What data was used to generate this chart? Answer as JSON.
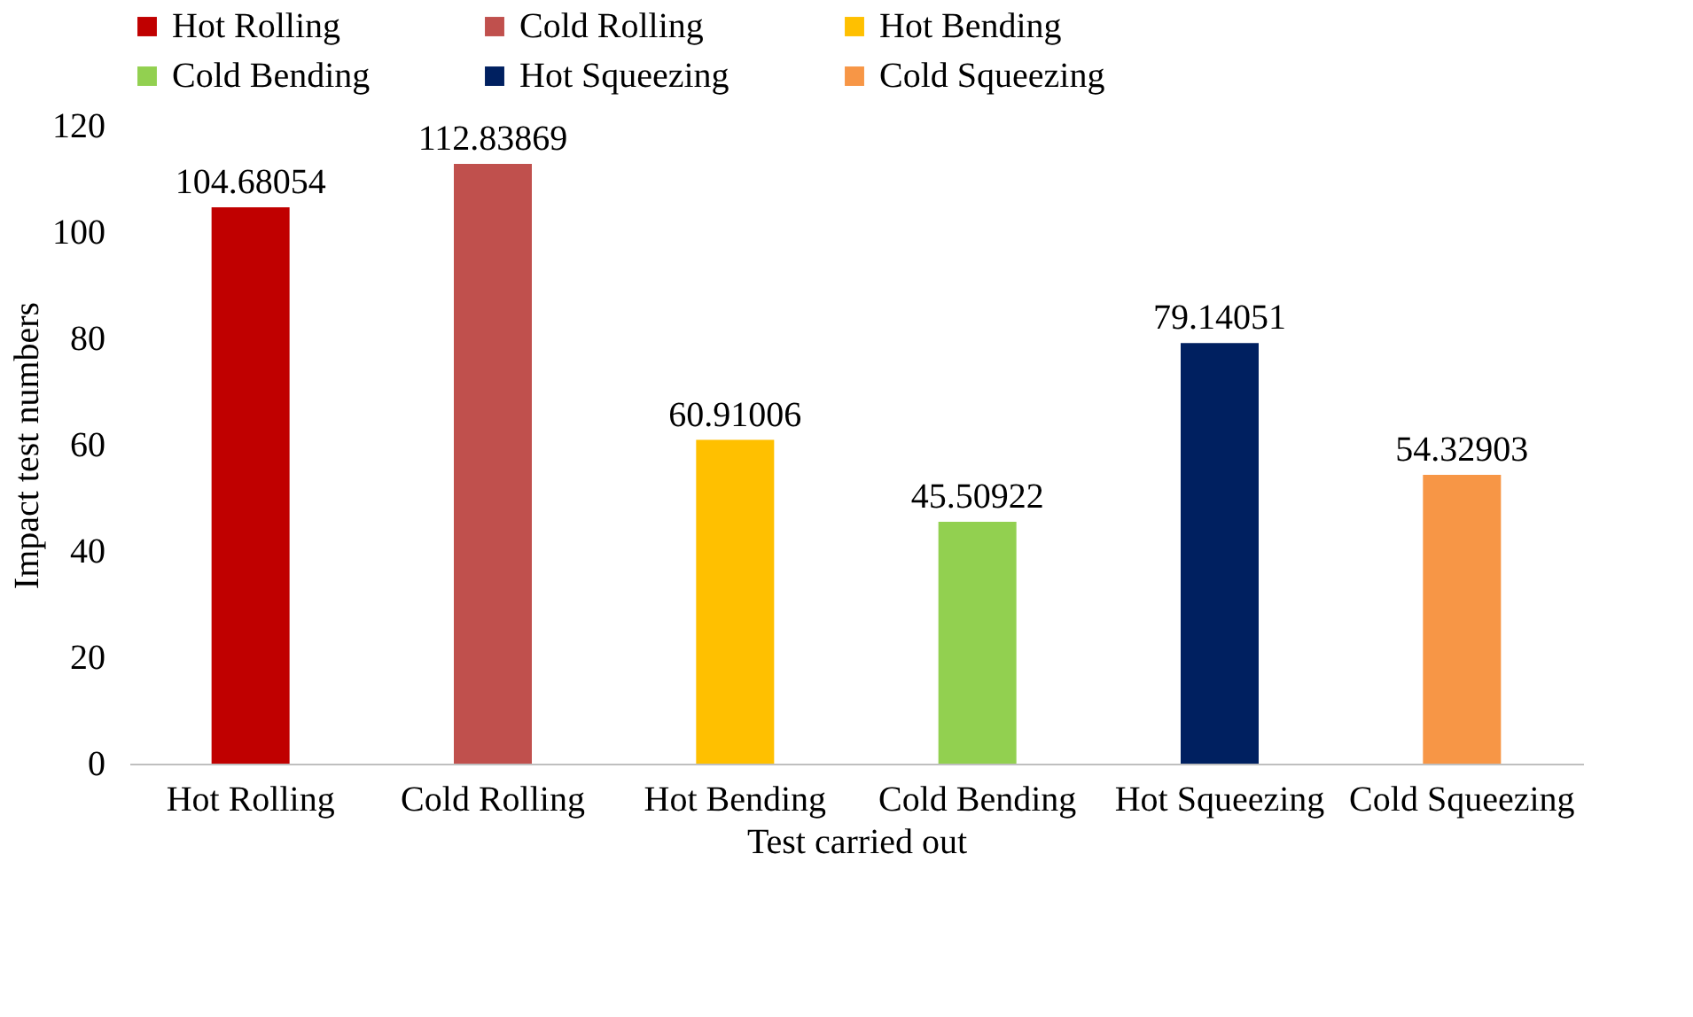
{
  "chart_data": {
    "type": "bar",
    "xlabel": "Test carried out",
    "ylabel": "Impact  test numbers",
    "categories": [
      "Hot Rolling",
      "Cold Rolling",
      "Hot Bending",
      "Cold Bending",
      "Hot Squeezing",
      "Cold Squeezing"
    ],
    "series": [
      {
        "name": "Hot Rolling",
        "color": "#c00000",
        "values": [
          104.68054,
          null,
          null,
          null,
          null,
          null
        ]
      },
      {
        "name": "Cold Rolling",
        "color": "#c0504d",
        "values": [
          null,
          112.83869,
          null,
          null,
          null,
          null
        ]
      },
      {
        "name": "Hot Bending",
        "color": "#ffc000",
        "values": [
          null,
          null,
          60.91006,
          null,
          null,
          null
        ]
      },
      {
        "name": "Cold Bending",
        "color": "#92d050",
        "values": [
          null,
          null,
          null,
          45.50922,
          null,
          null
        ]
      },
      {
        "name": "Hot Squeezing",
        "color": "#002060",
        "values": [
          null,
          null,
          null,
          null,
          79.14051,
          null
        ]
      },
      {
        "name": "Cold Squeezing",
        "color": "#f79646",
        "values": [
          null,
          null,
          null,
          null,
          null,
          54.32903
        ]
      }
    ],
    "ylim": [
      0,
      120
    ],
    "yticks": [
      0,
      20,
      40,
      60,
      80,
      100,
      120
    ],
    "data_labels": true,
    "legend": "top",
    "grid": false
  }
}
